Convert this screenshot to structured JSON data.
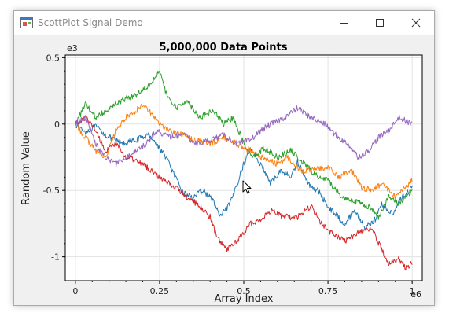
{
  "window": {
    "title": "ScottPlot Signal Demo"
  },
  "chart_data": {
    "type": "line",
    "title": "5,000,000 Data Points",
    "xlabel": "Array Index",
    "ylabel": "Random Value",
    "x_multiplier": "e6",
    "y_multiplier": "e3",
    "xlim": [
      -0.03,
      1.03
    ],
    "ylim": [
      -1.18,
      0.52
    ],
    "x_ticks": [
      0,
      0.25,
      0.5,
      0.75,
      1
    ],
    "x_tick_labels": [
      "0",
      "0.25",
      "0.5",
      "0.75",
      "1"
    ],
    "y_ticks": [
      0.5,
      0,
      -0.5,
      -1
    ],
    "y_tick_labels": [
      "0.5",
      "0",
      "-0.5",
      "-1"
    ],
    "grid": true,
    "legend": "none",
    "series": [
      {
        "color": "#1f77b4",
        "x": [
          0,
          0.03,
          0.06,
          0.1,
          0.14,
          0.18,
          0.22,
          0.27,
          0.3,
          0.32,
          0.35,
          0.38,
          0.41,
          0.43,
          0.46,
          0.48,
          0.5,
          0.52,
          0.55,
          0.58,
          0.61,
          0.64,
          0.66,
          0.69,
          0.72,
          0.75,
          0.78,
          0.8,
          0.83,
          0.86,
          0.89,
          0.91,
          0.94,
          0.97,
          1.0
        ],
        "values": [
          0.0,
          -0.06,
          -0.02,
          -0.1,
          -0.15,
          -0.12,
          -0.08,
          -0.25,
          -0.42,
          -0.52,
          -0.55,
          -0.5,
          -0.58,
          -0.7,
          -0.6,
          -0.45,
          -0.3,
          -0.18,
          -0.3,
          -0.45,
          -0.35,
          -0.4,
          -0.28,
          -0.45,
          -0.5,
          -0.62,
          -0.7,
          -0.75,
          -0.65,
          -0.78,
          -0.72,
          -0.6,
          -0.68,
          -0.55,
          -0.48
        ]
      },
      {
        "color": "#ff7f0e",
        "x": [
          0,
          0.03,
          0.06,
          0.09,
          0.12,
          0.15,
          0.18,
          0.2,
          0.22,
          0.25,
          0.28,
          0.32,
          0.36,
          0.4,
          0.44,
          0.48,
          0.52,
          0.55,
          0.6,
          0.63,
          0.67,
          0.7,
          0.75,
          0.78,
          0.82,
          0.85,
          0.88,
          0.91,
          0.95,
          0.98,
          1.0
        ],
        "values": [
          0.0,
          -0.1,
          -0.2,
          -0.25,
          -0.05,
          0.05,
          0.1,
          0.15,
          0.1,
          0.0,
          -0.05,
          -0.08,
          -0.12,
          -0.15,
          -0.1,
          -0.15,
          -0.2,
          -0.25,
          -0.3,
          -0.25,
          -0.35,
          -0.35,
          -0.32,
          -0.4,
          -0.35,
          -0.48,
          -0.5,
          -0.45,
          -0.55,
          -0.48,
          -0.42
        ]
      },
      {
        "color": "#2ca02c",
        "x": [
          0,
          0.03,
          0.06,
          0.1,
          0.14,
          0.18,
          0.22,
          0.25,
          0.27,
          0.3,
          0.33,
          0.37,
          0.41,
          0.44,
          0.47,
          0.5,
          0.53,
          0.56,
          0.6,
          0.64,
          0.68,
          0.72,
          0.75,
          0.79,
          0.83,
          0.87,
          0.9,
          0.93,
          0.96,
          1.0
        ],
        "values": [
          0.0,
          0.15,
          0.05,
          0.12,
          0.18,
          0.22,
          0.3,
          0.4,
          0.22,
          0.12,
          0.18,
          0.05,
          0.1,
          0.0,
          0.05,
          -0.15,
          -0.25,
          -0.18,
          -0.25,
          -0.2,
          -0.3,
          -0.4,
          -0.42,
          -0.55,
          -0.58,
          -0.62,
          -0.7,
          -0.55,
          -0.6,
          -0.5
        ]
      },
      {
        "color": "#d62728",
        "x": [
          0,
          0.03,
          0.06,
          0.09,
          0.12,
          0.15,
          0.2,
          0.25,
          0.3,
          0.33,
          0.36,
          0.4,
          0.42,
          0.45,
          0.48,
          0.52,
          0.55,
          0.58,
          0.62,
          0.66,
          0.7,
          0.73,
          0.76,
          0.8,
          0.84,
          0.88,
          0.91,
          0.93,
          0.96,
          0.98,
          1.0
        ],
        "values": [
          0.0,
          0.05,
          -0.05,
          -0.2,
          -0.15,
          -0.25,
          -0.3,
          -0.4,
          -0.48,
          -0.55,
          -0.6,
          -0.7,
          -0.85,
          -0.95,
          -0.88,
          -0.75,
          -0.72,
          -0.65,
          -0.7,
          -0.7,
          -0.62,
          -0.75,
          -0.82,
          -0.88,
          -0.82,
          -0.78,
          -0.95,
          -1.05,
          -1.02,
          -1.08,
          -1.05
        ]
      },
      {
        "color": "#9467bd",
        "x": [
          0,
          0.03,
          0.06,
          0.09,
          0.12,
          0.15,
          0.18,
          0.21,
          0.24,
          0.28,
          0.32,
          0.36,
          0.4,
          0.44,
          0.48,
          0.52,
          0.55,
          0.58,
          0.62,
          0.66,
          0.7,
          0.74,
          0.78,
          0.81,
          0.84,
          0.87,
          0.9,
          0.93,
          0.96,
          1.0
        ],
        "values": [
          0.0,
          0.05,
          -0.15,
          -0.25,
          -0.3,
          -0.25,
          -0.2,
          -0.15,
          -0.05,
          -0.1,
          -0.08,
          -0.15,
          -0.12,
          -0.08,
          -0.15,
          -0.12,
          -0.05,
          0.0,
          0.05,
          0.12,
          0.05,
          0.0,
          -0.1,
          -0.15,
          -0.25,
          -0.2,
          -0.1,
          -0.05,
          0.05,
          0.0
        ]
      }
    ]
  }
}
